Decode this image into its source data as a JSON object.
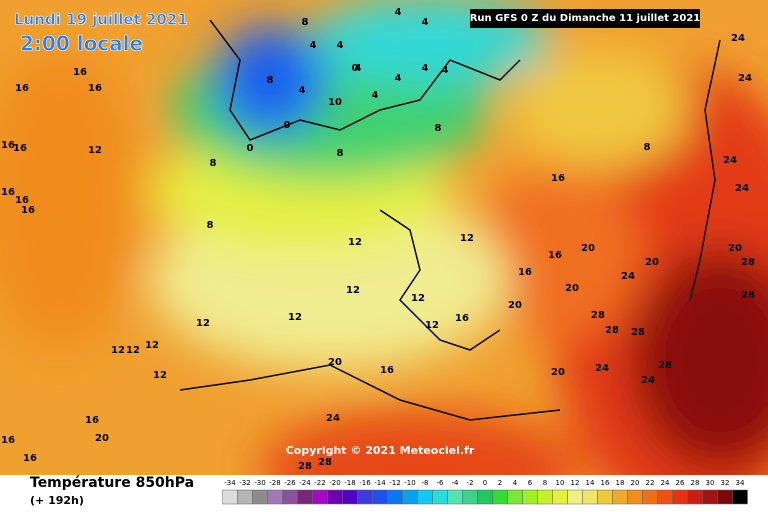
{
  "header": {
    "date": "Lundi 19 juillet 2021",
    "time": "2:00 locale",
    "run": "Run GFS 0 Z du Dimanche 11 juillet 2021",
    "copyright": "Copyright © 2021 Meteociel.fr"
  },
  "footer": {
    "title": "Température 850hPa",
    "lead": "(+ 192h)"
  },
  "legend": {
    "labels": [
      -34,
      -32,
      -30,
      -28,
      -26,
      -24,
      -22,
      -20,
      -18,
      -16,
      -14,
      -12,
      -10,
      -8,
      -6,
      -4,
      -2,
      0,
      2,
      4,
      6,
      8,
      10,
      12,
      14,
      16,
      18,
      20,
      22,
      24,
      26,
      28,
      30,
      32,
      34
    ],
    "colors": [
      "#dcdcdc",
      "#b4b4b4",
      "#8c8c8c",
      "#a07ab4",
      "#8c50a0",
      "#782878",
      "#a00ac8",
      "#6e00b4",
      "#5000c8",
      "#3c3cdc",
      "#1e50f0",
      "#0a78f0",
      "#0aa0f0",
      "#14c8f0",
      "#28dcdc",
      "#50e6b4",
      "#3cd28c",
      "#1ec85a",
      "#32dc32",
      "#78e632",
      "#a0f028",
      "#c8f028",
      "#e6f03c",
      "#f0f080",
      "#f0e664",
      "#f0c83c",
      "#f0aa28",
      "#f08c1e",
      "#f06e14",
      "#f05014",
      "#e63214",
      "#c81e14",
      "#a01414",
      "#780a0a",
      "#000000"
    ]
  },
  "map_labels": [
    "4",
    "4",
    "8",
    "4",
    "4",
    "4",
    "0",
    "4",
    "4",
    "4",
    "4",
    "8",
    "4",
    "10",
    "0",
    "0",
    "8",
    "8",
    "8",
    "16",
    "24",
    "24",
    "24",
    "24",
    "20",
    "28",
    "20",
    "24",
    "20",
    "20",
    "28",
    "28",
    "28",
    "28",
    "28",
    "24",
    "24",
    "20",
    "16",
    "16",
    "16",
    "12",
    "12",
    "12",
    "12",
    "12",
    "12",
    "12",
    "12",
    "12",
    "12",
    "16",
    "16",
    "16",
    "16",
    "16",
    "16",
    "16",
    "16",
    "8",
    "8",
    "20",
    "16",
    "24",
    "28",
    "28",
    "20",
    "16",
    "16",
    "16",
    "12",
    "12",
    "20"
  ]
}
